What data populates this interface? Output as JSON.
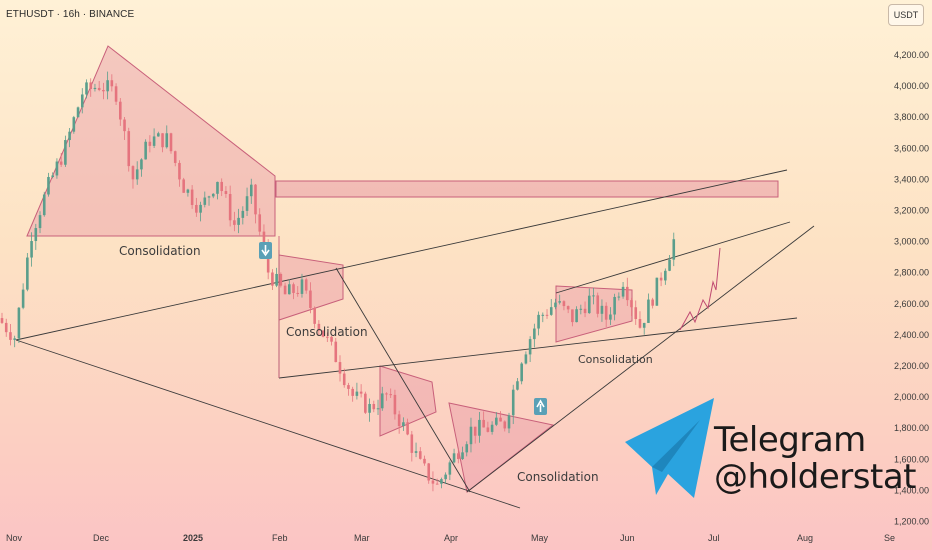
{
  "header": {
    "symbol_line": "ETHUSDT · 16h · BINANCE"
  },
  "price_axis": {
    "unit_label": "USDT",
    "ticks": [
      "4,200.00",
      "4,000.00",
      "3,800.00",
      "3,600.00",
      "3,400.00",
      "3,200.00",
      "3,000.00",
      "2,800.00",
      "2,600.00",
      "2,400.00",
      "2,200.00",
      "2,000.00",
      "1,800.00",
      "1,600.00",
      "1,400.00",
      "1,200.00"
    ]
  },
  "time_axis": {
    "ticks": [
      "Nov",
      "Dec",
      "2025",
      "Feb",
      "Mar",
      "Apr",
      "May",
      "Jun",
      "Jul",
      "Aug",
      "Se"
    ]
  },
  "chart_data": {
    "type": "line",
    "title": "ETHUSDT · 16h · BINANCE",
    "xlabel": "",
    "ylabel": "",
    "ylim": [
      1200,
      4300
    ],
    "x_ticks": [
      "Nov",
      "Dec",
      "2025",
      "Feb",
      "Mar",
      "Apr",
      "May",
      "Jun",
      "Jul",
      "Aug",
      "Se"
    ],
    "series": [
      {
        "x": [
          "Nov 1",
          "Nov 5",
          "Nov 12",
          "Nov 20",
          "Nov 28",
          "Dec 6",
          "Dec 10",
          "Dec 16",
          "Dec 20",
          "Dec 28",
          "Jan 3",
          "Jan 7",
          "Jan 14",
          "Jan 20",
          "Jan 27",
          "Feb 1",
          "Feb 3",
          "Feb 10",
          "Feb 20",
          "Feb 25",
          "Mar 3",
          "Mar 10",
          "Mar 20",
          "Mar 26",
          "Apr 1",
          "Apr 7",
          "Apr 9",
          "Apr 15",
          "Apr 22",
          "Apr 28",
          "May 5",
          "May 8",
          "May 11",
          "May 20",
          "May 26",
          "Jun 2",
          "Jun 10",
          "Jun 17",
          "Jun 22",
          "Jun 30",
          "Jul 4"
        ],
        "values": [
          2500,
          2380,
          3050,
          3350,
          3600,
          3950,
          4000,
          3950,
          3400,
          3650,
          3650,
          3350,
          3200,
          3400,
          3100,
          3300,
          2800,
          2650,
          2700,
          2450,
          2250,
          2000,
          1920,
          2000,
          1800,
          1550,
          1420,
          1610,
          1780,
          1790,
          1820,
          2250,
          2500,
          2600,
          2500,
          2620,
          2500,
          2750,
          2450,
          2700,
          3000
        ]
      }
    ],
    "annotations": [
      "Consolidation",
      "Consolidation",
      "Consolidation",
      "Consolidation",
      "Consolidation"
    ],
    "resistance_zone": [
      3280,
      3380
    ]
  },
  "watermark": {
    "line1": "Telegram",
    "line2": "@holderstat"
  },
  "colors": {
    "up_candle": "#5a9e8c",
    "down_candle": "#e5747e",
    "pattern_fill": "#e89aa6",
    "pattern_stroke": "#c8607a",
    "trend_line": "#3a3a3a",
    "telegram_blue": "#2aa3df"
  }
}
